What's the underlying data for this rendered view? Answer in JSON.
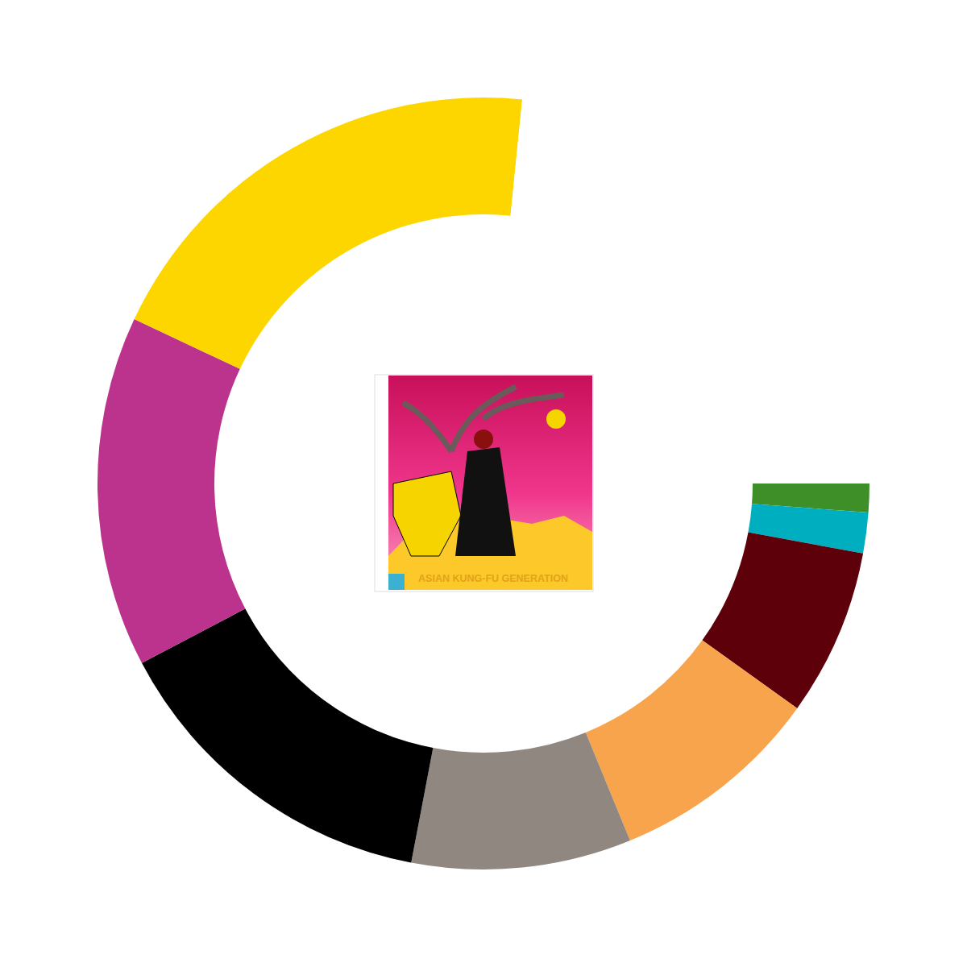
{
  "chart_data": {
    "type": "donut",
    "categories": [
      null,
      null,
      null,
      null,
      null,
      null,
      null,
      null,
      null
    ],
    "values": [
      1.2,
      1.7,
      7.0,
      8.9,
      9.2,
      14.3,
      14.7,
      19.6,
      23.4
    ],
    "colors": [
      "#3f8f29",
      "#00afbf",
      "#5e0009",
      "#f8a44c",
      "#8f8780",
      "#000000",
      "#bb338c",
      "#fdd600",
      "#ffffff"
    ],
    "data_labels": false,
    "annotations": [
      "ASIAN KUNG-FU GENERATION"
    ]
  }
}
